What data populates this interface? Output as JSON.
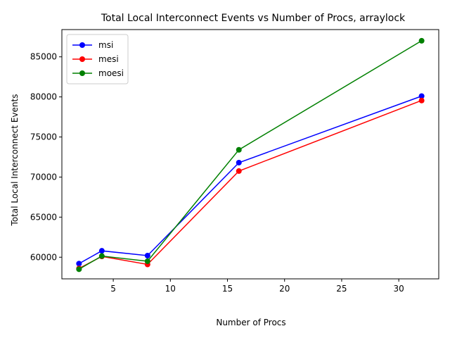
{
  "chart_data": {
    "type": "line",
    "title": "Total Local Interconnect Events vs Number of Procs, arraylock",
    "xlabel": "Number of Procs",
    "ylabel": "Total Local Interconnect Events",
    "x": [
      2,
      4,
      8,
      16,
      32
    ],
    "xlim": [
      0.5,
      33.5
    ],
    "ylim": [
      57300,
      88400
    ],
    "xticks": [
      5,
      10,
      15,
      20,
      25,
      30
    ],
    "yticks": [
      60000,
      65000,
      70000,
      75000,
      80000,
      85000
    ],
    "grid": false,
    "legend_position": "upper-left",
    "marker": "circle",
    "series": [
      {
        "name": "msi",
        "color": "#0000ff",
        "values": [
          59200,
          60800,
          60200,
          71800,
          80100
        ]
      },
      {
        "name": "mesi",
        "color": "#ff0000",
        "values": [
          58600,
          60100,
          59100,
          70750,
          79550
        ]
      },
      {
        "name": "moesi",
        "color": "#008000",
        "values": [
          58500,
          60150,
          59500,
          73400,
          87000
        ]
      }
    ]
  }
}
